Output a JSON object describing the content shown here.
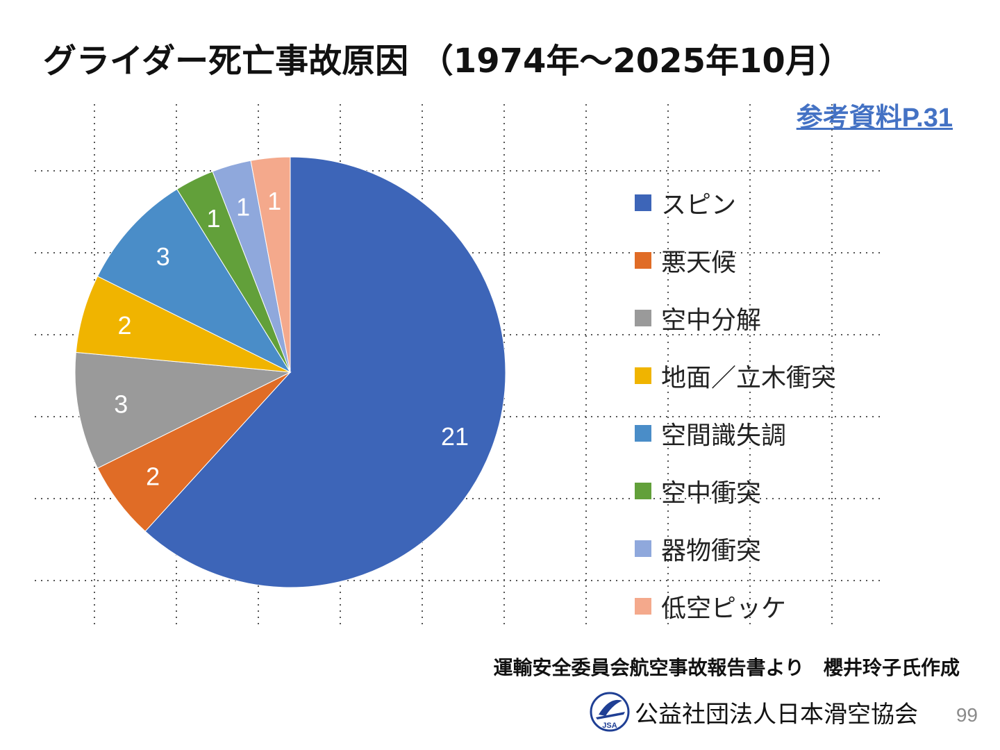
{
  "slide": {
    "title": "グライダー死亡事故原因 （1974年～2025年10月）",
    "reference_link": "参考資料P.31",
    "source_note": "運輸安全委員会航空事故報告書より　櫻井玲子氏作成",
    "organization": "公益社団法人日本滑空協会",
    "logo_text": "JSA",
    "page_number": "99"
  },
  "chart_data": {
    "type": "pie",
    "title": "",
    "categories": [
      "スピン",
      "悪天候",
      "空中分解",
      "地面／立木衝突",
      "空間識失調",
      "空中衝突",
      "器物衝突",
      "低空ピッケ"
    ],
    "values": [
      21,
      2,
      3,
      2,
      3,
      1,
      1,
      1
    ],
    "colors": [
      "#3d65b8",
      "#e06c26",
      "#9a9a9a",
      "#f0b400",
      "#4a8dc8",
      "#62a03a",
      "#8fa8dc",
      "#f4a98c"
    ],
    "data_labels": true,
    "legend_position": "right",
    "start_angle_deg": 0,
    "direction": "clockwise",
    "grid": true
  }
}
